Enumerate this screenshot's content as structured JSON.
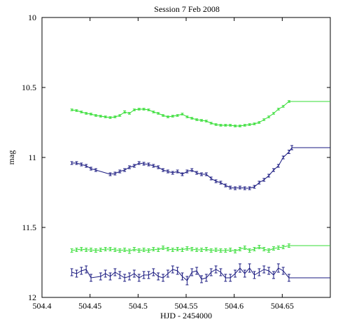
{
  "chart_data": {
    "type": "line",
    "title": "Session 7 Feb 2008",
    "xlabel": "HJD - 2454000",
    "ylabel": "mag",
    "xlim": [
      504.4,
      504.7
    ],
    "ylim": [
      12,
      10
    ],
    "y_inverted": true,
    "grid": false,
    "xticks": [
      504.4,
      504.45,
      504.5,
      504.55,
      504.6,
      504.65
    ],
    "xtick_labels": [
      "504.4",
      "504.45",
      "504.5",
      "504.55",
      "504.6",
      "504.65"
    ],
    "yticks": [
      10,
      10.5,
      11,
      11.5,
      12
    ],
    "ytick_labels": [
      "10",
      "10.5",
      "11",
      "11.5",
      "12"
    ],
    "series": [
      {
        "color": "#33dd33",
        "extend_to": 504.7,
        "points": [
          [
            504.431,
            10.66,
            0.006
          ],
          [
            504.436,
            10.665,
            0.006
          ],
          [
            504.441,
            10.675,
            0.006
          ],
          [
            504.446,
            10.685,
            0.006
          ],
          [
            504.451,
            10.69,
            0.006
          ],
          [
            504.456,
            10.7,
            0.006
          ],
          [
            504.461,
            10.705,
            0.006
          ],
          [
            504.466,
            10.71,
            0.006
          ],
          [
            504.471,
            10.715,
            0.006
          ],
          [
            504.476,
            10.71,
            0.006
          ],
          [
            504.481,
            10.7,
            0.006
          ],
          [
            504.486,
            10.675,
            0.008
          ],
          [
            504.491,
            10.685,
            0.006
          ],
          [
            504.496,
            10.66,
            0.006
          ],
          [
            504.501,
            10.655,
            0.006
          ],
          [
            504.506,
            10.655,
            0.006
          ],
          [
            504.511,
            10.66,
            0.006
          ],
          [
            504.516,
            10.675,
            0.006
          ],
          [
            504.521,
            10.685,
            0.006
          ],
          [
            504.526,
            10.7,
            0.006
          ],
          [
            504.531,
            10.71,
            0.006
          ],
          [
            504.536,
            10.705,
            0.006
          ],
          [
            504.541,
            10.7,
            0.006
          ],
          [
            504.546,
            10.69,
            0.006
          ],
          [
            504.551,
            10.71,
            0.006
          ],
          [
            504.556,
            10.72,
            0.006
          ],
          [
            504.561,
            10.73,
            0.006
          ],
          [
            504.566,
            10.735,
            0.006
          ],
          [
            504.571,
            10.74,
            0.006
          ],
          [
            504.576,
            10.755,
            0.006
          ],
          [
            504.581,
            10.765,
            0.006
          ],
          [
            504.586,
            10.77,
            0.006
          ],
          [
            504.591,
            10.77,
            0.006
          ],
          [
            504.596,
            10.77,
            0.006
          ],
          [
            504.601,
            10.775,
            0.006
          ],
          [
            504.606,
            10.775,
            0.006
          ],
          [
            504.611,
            10.77,
            0.006
          ],
          [
            504.616,
            10.765,
            0.006
          ],
          [
            504.621,
            10.76,
            0.006
          ],
          [
            504.626,
            10.75,
            0.006
          ],
          [
            504.631,
            10.73,
            0.006
          ],
          [
            504.636,
            10.71,
            0.006
          ],
          [
            504.641,
            10.685,
            0.006
          ],
          [
            504.646,
            10.655,
            0.006
          ],
          [
            504.651,
            10.635,
            0.006
          ],
          [
            504.657,
            10.6,
            0.006
          ]
        ]
      },
      {
        "color": "#1a1a80",
        "extend_to": 504.7,
        "points": [
          [
            504.431,
            11.04,
            0.01
          ],
          [
            504.436,
            11.04,
            0.01
          ],
          [
            504.441,
            11.05,
            0.01
          ],
          [
            504.446,
            11.06,
            0.01
          ],
          [
            504.451,
            11.08,
            0.01
          ],
          [
            504.456,
            11.09,
            0.01
          ],
          [
            504.471,
            11.12,
            0.01
          ],
          [
            504.476,
            11.115,
            0.01
          ],
          [
            504.481,
            11.1,
            0.01
          ],
          [
            504.486,
            11.09,
            0.01
          ],
          [
            504.491,
            11.07,
            0.01
          ],
          [
            504.496,
            11.06,
            0.01
          ],
          [
            504.501,
            11.04,
            0.01
          ],
          [
            504.506,
            11.045,
            0.01
          ],
          [
            504.511,
            11.05,
            0.01
          ],
          [
            504.516,
            11.06,
            0.01
          ],
          [
            504.521,
            11.07,
            0.01
          ],
          [
            504.526,
            11.09,
            0.01
          ],
          [
            504.531,
            11.1,
            0.01
          ],
          [
            504.536,
            11.11,
            0.01
          ],
          [
            504.541,
            11.1,
            0.01
          ],
          [
            504.546,
            11.12,
            0.01
          ],
          [
            504.551,
            11.1,
            0.01
          ],
          [
            504.556,
            11.09,
            0.01
          ],
          [
            504.561,
            11.11,
            0.01
          ],
          [
            504.566,
            11.12,
            0.01
          ],
          [
            504.571,
            11.12,
            0.01
          ],
          [
            504.576,
            11.15,
            0.01
          ],
          [
            504.581,
            11.17,
            0.01
          ],
          [
            504.586,
            11.18,
            0.01
          ],
          [
            504.591,
            11.2,
            0.01
          ],
          [
            504.596,
            11.215,
            0.01
          ],
          [
            504.601,
            11.22,
            0.01
          ],
          [
            504.606,
            11.215,
            0.01
          ],
          [
            504.611,
            11.22,
            0.01
          ],
          [
            504.616,
            11.22,
            0.01
          ],
          [
            504.621,
            11.21,
            0.01
          ],
          [
            504.626,
            11.18,
            0.01
          ],
          [
            504.631,
            11.16,
            0.01
          ],
          [
            504.636,
            11.13,
            0.01
          ],
          [
            504.641,
            11.09,
            0.01
          ],
          [
            504.646,
            11.06,
            0.01
          ],
          [
            504.651,
            11.0,
            0.01
          ],
          [
            504.657,
            10.96,
            0.012
          ],
          [
            504.66,
            10.93,
            0.015
          ]
        ]
      },
      {
        "color": "#33dd33",
        "extend_to": 504.7,
        "points": [
          [
            504.431,
            11.665,
            0.012
          ],
          [
            504.436,
            11.66,
            0.012
          ],
          [
            504.441,
            11.655,
            0.012
          ],
          [
            504.446,
            11.66,
            0.012
          ],
          [
            504.451,
            11.66,
            0.012
          ],
          [
            504.456,
            11.665,
            0.012
          ],
          [
            504.461,
            11.66,
            0.012
          ],
          [
            504.466,
            11.655,
            0.012
          ],
          [
            504.471,
            11.655,
            0.012
          ],
          [
            504.476,
            11.66,
            0.012
          ],
          [
            504.481,
            11.665,
            0.012
          ],
          [
            504.486,
            11.66,
            0.012
          ],
          [
            504.491,
            11.67,
            0.015
          ],
          [
            504.496,
            11.655,
            0.012
          ],
          [
            504.501,
            11.665,
            0.012
          ],
          [
            504.506,
            11.66,
            0.012
          ],
          [
            504.511,
            11.665,
            0.012
          ],
          [
            504.516,
            11.655,
            0.012
          ],
          [
            504.521,
            11.66,
            0.012
          ],
          [
            504.526,
            11.645,
            0.012
          ],
          [
            504.531,
            11.655,
            0.012
          ],
          [
            504.536,
            11.66,
            0.012
          ],
          [
            504.541,
            11.655,
            0.012
          ],
          [
            504.546,
            11.66,
            0.012
          ],
          [
            504.551,
            11.65,
            0.012
          ],
          [
            504.556,
            11.655,
            0.012
          ],
          [
            504.561,
            11.66,
            0.012
          ],
          [
            504.566,
            11.66,
            0.012
          ],
          [
            504.571,
            11.655,
            0.012
          ],
          [
            504.576,
            11.665,
            0.012
          ],
          [
            504.581,
            11.66,
            0.012
          ],
          [
            504.586,
            11.665,
            0.012
          ],
          [
            504.591,
            11.665,
            0.012
          ],
          [
            504.596,
            11.66,
            0.012
          ],
          [
            504.601,
            11.67,
            0.012
          ],
          [
            504.606,
            11.655,
            0.012
          ],
          [
            504.611,
            11.645,
            0.012
          ],
          [
            504.616,
            11.665,
            0.012
          ],
          [
            504.621,
            11.655,
            0.012
          ],
          [
            504.626,
            11.64,
            0.012
          ],
          [
            504.631,
            11.655,
            0.012
          ],
          [
            504.636,
            11.665,
            0.012
          ],
          [
            504.641,
            11.65,
            0.012
          ],
          [
            504.646,
            11.645,
            0.012
          ],
          [
            504.651,
            11.64,
            0.012
          ],
          [
            504.657,
            11.63,
            0.012
          ]
        ]
      },
      {
        "color": "#1a1a80",
        "extend_to": 504.7,
        "points": [
          [
            504.431,
            11.82,
            0.025
          ],
          [
            504.436,
            11.83,
            0.025
          ],
          [
            504.441,
            11.81,
            0.025
          ],
          [
            504.446,
            11.8,
            0.025
          ],
          [
            504.451,
            11.86,
            0.025
          ],
          [
            504.461,
            11.85,
            0.025
          ],
          [
            504.466,
            11.83,
            0.025
          ],
          [
            504.471,
            11.85,
            0.025
          ],
          [
            504.476,
            11.82,
            0.025
          ],
          [
            504.481,
            11.84,
            0.025
          ],
          [
            504.486,
            11.86,
            0.025
          ],
          [
            504.491,
            11.85,
            0.025
          ],
          [
            504.496,
            11.83,
            0.025
          ],
          [
            504.501,
            11.86,
            0.025
          ],
          [
            504.506,
            11.84,
            0.025
          ],
          [
            504.511,
            11.84,
            0.025
          ],
          [
            504.516,
            11.82,
            0.025
          ],
          [
            504.521,
            11.85,
            0.025
          ],
          [
            504.526,
            11.86,
            0.025
          ],
          [
            504.531,
            11.83,
            0.025
          ],
          [
            504.536,
            11.8,
            0.025
          ],
          [
            504.541,
            11.81,
            0.025
          ],
          [
            504.546,
            11.85,
            0.025
          ],
          [
            504.551,
            11.88,
            0.03
          ],
          [
            504.556,
            11.82,
            0.025
          ],
          [
            504.561,
            11.81,
            0.025
          ],
          [
            504.566,
            11.87,
            0.025
          ],
          [
            504.571,
            11.86,
            0.025
          ],
          [
            504.576,
            11.82,
            0.025
          ],
          [
            504.581,
            11.8,
            0.025
          ],
          [
            504.586,
            11.82,
            0.025
          ],
          [
            504.591,
            11.86,
            0.025
          ],
          [
            504.596,
            11.86,
            0.025
          ],
          [
            504.601,
            11.83,
            0.025
          ],
          [
            504.606,
            11.79,
            0.03
          ],
          [
            504.611,
            11.83,
            0.025
          ],
          [
            504.616,
            11.79,
            0.03
          ],
          [
            504.621,
            11.84,
            0.025
          ],
          [
            504.626,
            11.82,
            0.025
          ],
          [
            504.631,
            11.8,
            0.025
          ],
          [
            504.636,
            11.81,
            0.025
          ],
          [
            504.641,
            11.84,
            0.025
          ],
          [
            504.646,
            11.79,
            0.03
          ],
          [
            504.651,
            11.81,
            0.025
          ],
          [
            504.657,
            11.86,
            0.025
          ]
        ]
      }
    ]
  }
}
